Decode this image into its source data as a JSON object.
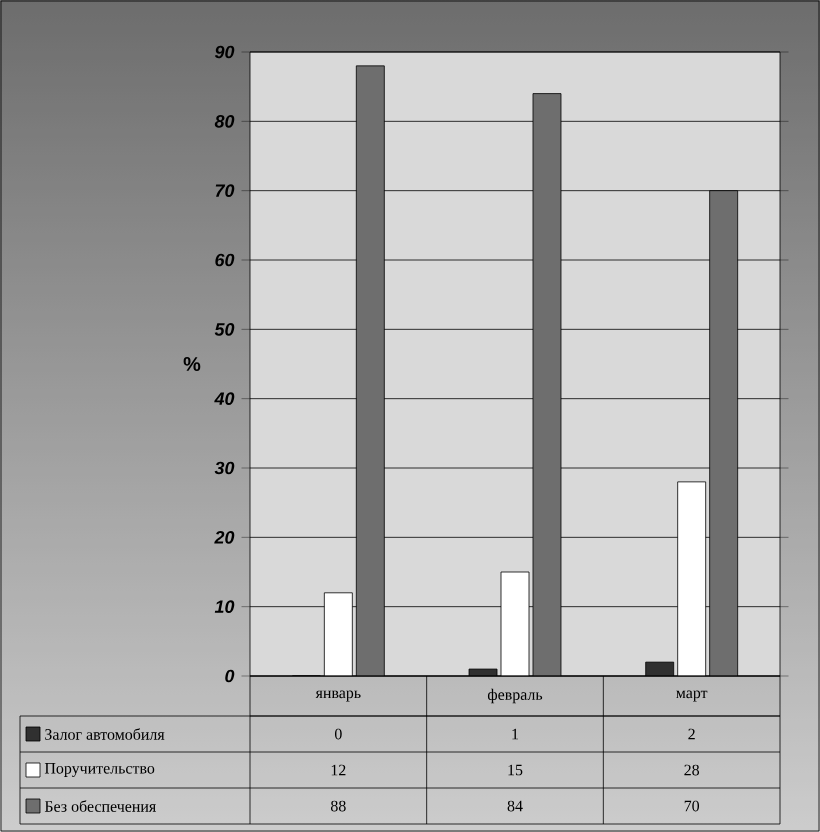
{
  "chart_data": {
    "type": "bar",
    "ylabel": "%",
    "categories": [
      "январь",
      "февраль",
      "март"
    ],
    "series": [
      {
        "name": "Залог автомобиля",
        "color": "#303030",
        "values": [
          0,
          1,
          2
        ]
      },
      {
        "name": "Поручительство",
        "color": "#ffffff",
        "values": [
          12,
          15,
          28
        ]
      },
      {
        "name": "Без обеспечения",
        "color": "#6e6e6e",
        "values": [
          88,
          84,
          70
        ]
      }
    ],
    "ylim": [
      0,
      90
    ],
    "yticks": [
      0,
      10,
      20,
      30,
      40,
      50,
      60,
      70,
      80,
      90
    ],
    "grid": "y",
    "legend": "bottom",
    "data_labels": true
  }
}
